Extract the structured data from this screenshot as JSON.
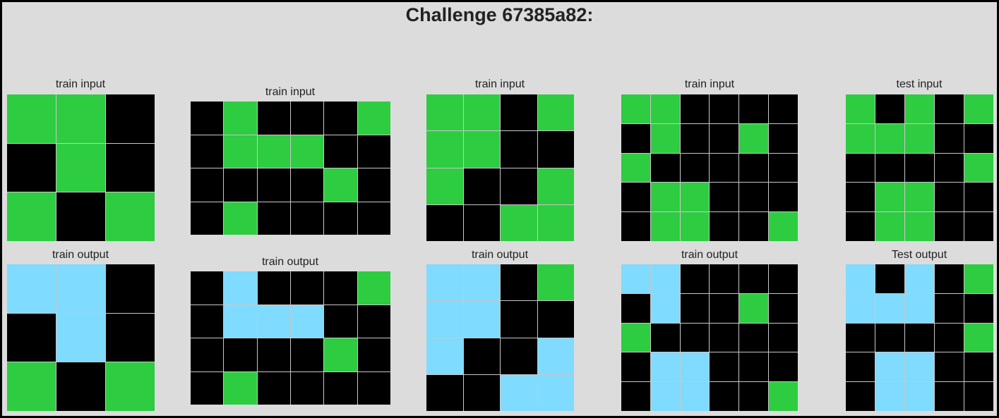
{
  "title": "Challenge 67385a82:",
  "colors": {
    "0": "#000000",
    "3": "#2ecc40",
    "8": "#7fdbff"
  },
  "panels": [
    {
      "label": "train input",
      "grid": [
        [
          3,
          3,
          0
        ],
        [
          0,
          3,
          0
        ],
        [
          3,
          0,
          3
        ]
      ]
    },
    {
      "label": "train output",
      "grid": [
        [
          8,
          8,
          0
        ],
        [
          0,
          8,
          0
        ],
        [
          3,
          0,
          3
        ]
      ]
    },
    {
      "label": "train input",
      "grid": [
        [
          0,
          3,
          0,
          0,
          0,
          3
        ],
        [
          0,
          3,
          3,
          3,
          0,
          0
        ],
        [
          0,
          0,
          0,
          0,
          3,
          0
        ],
        [
          0,
          3,
          0,
          0,
          0,
          0
        ]
      ]
    },
    {
      "label": "train output",
      "grid": [
        [
          0,
          8,
          0,
          0,
          0,
          3
        ],
        [
          0,
          8,
          8,
          8,
          0,
          0
        ],
        [
          0,
          0,
          0,
          0,
          3,
          0
        ],
        [
          0,
          3,
          0,
          0,
          0,
          0
        ]
      ]
    },
    {
      "label": "train input",
      "grid": [
        [
          3,
          3,
          0,
          3
        ],
        [
          3,
          3,
          0,
          0
        ],
        [
          3,
          0,
          0,
          3
        ],
        [
          0,
          0,
          3,
          3
        ]
      ]
    },
    {
      "label": "train output",
      "grid": [
        [
          8,
          8,
          0,
          3
        ],
        [
          8,
          8,
          0,
          0
        ],
        [
          8,
          0,
          0,
          8
        ],
        [
          0,
          0,
          8,
          8
        ]
      ]
    },
    {
      "label": "train input",
      "grid": [
        [
          3,
          3,
          0,
          0,
          0,
          0
        ],
        [
          0,
          3,
          0,
          0,
          3,
          0
        ],
        [
          3,
          0,
          0,
          0,
          0,
          0
        ],
        [
          0,
          3,
          3,
          0,
          0,
          0
        ],
        [
          0,
          3,
          3,
          0,
          0,
          3
        ]
      ]
    },
    {
      "label": "train output",
      "grid": [
        [
          8,
          8,
          0,
          0,
          0,
          0
        ],
        [
          0,
          8,
          0,
          0,
          3,
          0
        ],
        [
          3,
          0,
          0,
          0,
          0,
          0
        ],
        [
          0,
          8,
          8,
          0,
          0,
          0
        ],
        [
          0,
          8,
          8,
          0,
          0,
          3
        ]
      ]
    },
    {
      "label": "test input",
      "grid": [
        [
          3,
          0,
          3,
          0,
          3
        ],
        [
          3,
          3,
          3,
          0,
          0
        ],
        [
          0,
          0,
          0,
          0,
          3
        ],
        [
          0,
          3,
          3,
          0,
          0
        ],
        [
          0,
          3,
          3,
          0,
          0
        ]
      ]
    },
    {
      "label": "Test output",
      "grid": [
        [
          8,
          0,
          8,
          0,
          3
        ],
        [
          8,
          8,
          8,
          0,
          0
        ],
        [
          0,
          0,
          0,
          0,
          3
        ],
        [
          0,
          8,
          8,
          0,
          0
        ],
        [
          0,
          8,
          8,
          0,
          0
        ]
      ]
    }
  ]
}
